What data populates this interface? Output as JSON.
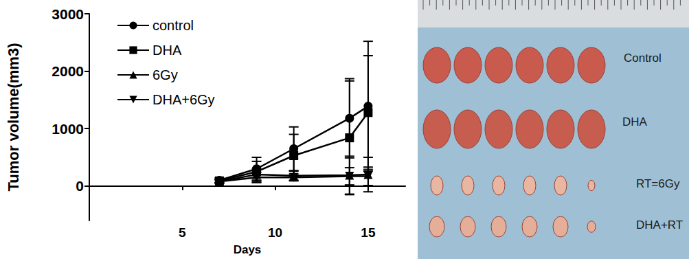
{
  "chart_data": {
    "type": "line",
    "x_label": "Days",
    "y_label": "Tumor volume(mm3)",
    "x": [
      7,
      9,
      11,
      14,
      15
    ],
    "xlim": [
      0,
      17
    ],
    "xticks": [
      5,
      10,
      15
    ],
    "ylim": [
      -600,
      3000
    ],
    "yticks": [
      0,
      1000,
      2000,
      3000
    ],
    "grid": false,
    "legend": "upper left",
    "series": [
      {
        "name": "control",
        "color": "#000000",
        "marker": "circle",
        "values": [
          100,
          300,
          650,
          1180,
          1390
        ],
        "errors": [
          40,
          200,
          380,
          690,
          1130
        ]
      },
      {
        "name": "DHA",
        "color": "#000000",
        "marker": "square",
        "values": [
          90,
          250,
          530,
          840,
          1280
        ],
        "errors": [
          30,
          180,
          370,
          990,
          990
        ]
      },
      {
        "name": "6Gy",
        "color": "#000000",
        "marker": "triangle",
        "values": [
          80,
          200,
          180,
          190,
          200
        ],
        "errors": [
          30,
          100,
          80,
          330,
          300
        ]
      },
      {
        "name": "DHA+6Gy",
        "color": "#000000",
        "marker": "triangle_down",
        "values": [
          80,
          150,
          150,
          170,
          170
        ],
        "errors": [
          30,
          90,
          60,
          150,
          160
        ]
      }
    ]
  },
  "photo": {
    "labels": [
      "Control",
      "DHA",
      "RT=6Gy",
      "DHA+RT"
    ]
  }
}
